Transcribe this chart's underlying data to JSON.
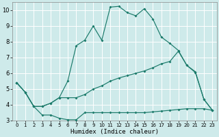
{
  "bg_color": "#ceeaea",
  "grid_color": "#b8d8d8",
  "line_color": "#1a7a6a",
  "xlabel": "Humidex (Indice chaleur)",
  "xlim": [
    -0.5,
    23.5
  ],
  "ylim": [
    3,
    10.5
  ],
  "yticks": [
    3,
    4,
    5,
    6,
    7,
    8,
    9,
    10
  ],
  "xticks": [
    0,
    1,
    2,
    3,
    4,
    5,
    6,
    7,
    8,
    9,
    10,
    11,
    12,
    13,
    14,
    15,
    16,
    17,
    18,
    19,
    20,
    21,
    22,
    23
  ],
  "series1_x": [
    0,
    1,
    2,
    3,
    4,
    5,
    6,
    7,
    8,
    9,
    10,
    11,
    12,
    13,
    14,
    15,
    16,
    17,
    18,
    19,
    20,
    21,
    22,
    23
  ],
  "series1_y": [
    5.4,
    4.8,
    3.9,
    3.9,
    4.1,
    4.45,
    5.5,
    7.75,
    8.1,
    9.0,
    8.1,
    10.2,
    10.25,
    9.85,
    9.65,
    10.1,
    9.45,
    8.3,
    7.9,
    7.45,
    6.5,
    6.05,
    4.35,
    3.65
  ],
  "series2_x": [
    0,
    1,
    2,
    3,
    4,
    5,
    6,
    7,
    8,
    9,
    10,
    11,
    12,
    13,
    14,
    15,
    16,
    17,
    18,
    19,
    20,
    21,
    22,
    23
  ],
  "series2_y": [
    5.4,
    4.8,
    3.9,
    3.9,
    4.1,
    4.45,
    4.45,
    4.45,
    4.65,
    5.0,
    5.2,
    5.5,
    5.7,
    5.85,
    6.0,
    6.15,
    6.35,
    6.6,
    6.75,
    7.4,
    6.5,
    6.1,
    4.35,
    3.65
  ],
  "series3_x": [
    0,
    1,
    2,
    3,
    4,
    5,
    6,
    7,
    8,
    9,
    10,
    11,
    12,
    13,
    14,
    15,
    16,
    17,
    18,
    19,
    20,
    21,
    22,
    23
  ],
  "series3_y": [
    5.4,
    4.8,
    3.9,
    3.35,
    3.35,
    3.15,
    3.05,
    3.05,
    3.5,
    3.5,
    3.5,
    3.5,
    3.5,
    3.5,
    3.5,
    3.5,
    3.55,
    3.6,
    3.65,
    3.7,
    3.75,
    3.75,
    3.75,
    3.65
  ]
}
